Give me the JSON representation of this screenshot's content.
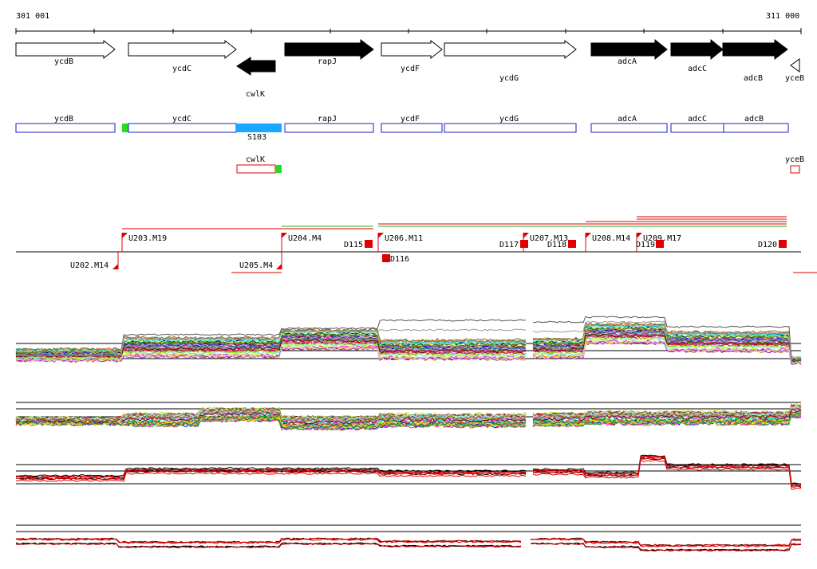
{
  "ruler": {
    "start_label": "301 001",
    "end_label": "311 000"
  },
  "genes": [
    {
      "name": "ycdB",
      "strand": "+",
      "color": "white"
    },
    {
      "name": "ycdC",
      "strand": "+",
      "color": "white"
    },
    {
      "name": "cwlK",
      "strand": "-",
      "color": "black"
    },
    {
      "name": "rapJ",
      "strand": "+",
      "color": "black"
    },
    {
      "name": "ycdF",
      "strand": "+",
      "color": "white"
    },
    {
      "name": "ycdG",
      "strand": "+",
      "color": "white"
    },
    {
      "name": "adcA",
      "strand": "+",
      "color": "black"
    },
    {
      "name": "adcC",
      "strand": "+",
      "color": "black"
    },
    {
      "name": "adcB",
      "strand": "+",
      "color": "black"
    },
    {
      "name": "yceB",
      "strand": "-",
      "color": "white"
    }
  ],
  "feature_track_1": [
    "ycdB",
    "ycdC",
    "rapJ",
    "ycdF",
    "ycdG",
    "adcA",
    "adcC",
    "adcB"
  ],
  "feature_track_1_extra": {
    "s103_label": "S103"
  },
  "feature_track_2": [
    "cwlK",
    "yceB"
  ],
  "upshifts": [
    "U203.M19",
    "U204.M4",
    "U206.M11",
    "U207.M13",
    "U208.M14",
    "U209.M17"
  ],
  "downshifts_below": [
    "U202.M14",
    "U205.M4"
  ],
  "terminators": [
    "D115",
    "D116",
    "D117",
    "D118",
    "D119",
    "D120"
  ],
  "colors": {
    "gene_outline": "#000000",
    "feature_box": "#1e1ecc",
    "feature_box_red": "#e00000",
    "green_marker": "#22dd22",
    "s103_bar": "#1aa8ff",
    "shift_red": "#ff0000",
    "baseline": "#000000"
  }
}
